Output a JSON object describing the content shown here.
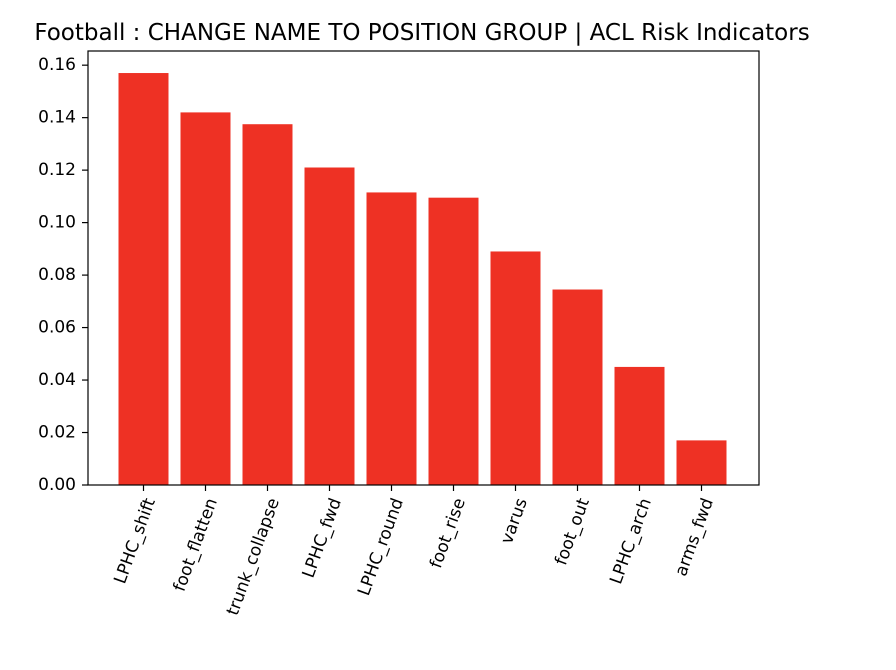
{
  "chart_data": {
    "type": "bar",
    "title": "Football : CHANGE NAME TO POSITION GROUP | ACL Risk Indicators",
    "xlabel": "",
    "ylabel": "",
    "categories": [
      "LPHC_shift",
      "foot_flatten",
      "trunk_collapse",
      "LPHC_fwd",
      "LPHC_round",
      "foot_rise",
      "varus",
      "foot_out",
      "LPHC_arch",
      "arms_fwd"
    ],
    "values": [
      0.157,
      0.142,
      0.1375,
      0.121,
      0.1115,
      0.1095,
      0.089,
      0.0745,
      0.045,
      0.017
    ],
    "ylim": [
      0,
      0.1654
    ],
    "yticks": [
      "0.00",
      "0.02",
      "0.04",
      "0.06",
      "0.08",
      "0.10",
      "0.12",
      "0.14",
      "0.16"
    ],
    "xtick_rotation": 70,
    "bar_color": "#ee3124",
    "grid": false,
    "legend": "none"
  }
}
